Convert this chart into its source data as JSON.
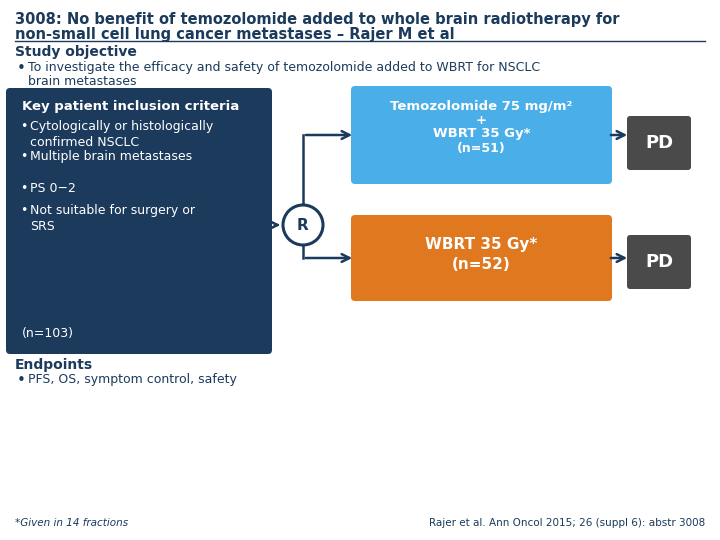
{
  "title_line1": "3008: No benefit of temozolomide added to whole brain radiotherapy for",
  "title_line2": "non-small cell lung cancer metastases – Rajer M et al",
  "study_objective_header": "Study objective",
  "study_objective_bullet1": "To investigate the efficacy and safety of temozolomide added to WBRT for NSCLC",
  "study_objective_bullet2": "brain metastases",
  "key_box_header": "Key patient inclusion criteria",
  "key_box_bullets": [
    "Cytologically or histologically\nconfirmed NSCLC",
    "Multiple brain metastases",
    "PS 0−2",
    "Not suitable for surgery or\nSRS"
  ],
  "key_box_footer": "(n=103)",
  "key_box_color": "#1b3a5c",
  "arm1_line1": "Temozolomide 75 mg/m²",
  "arm1_line2": "+",
  "arm1_line3": "WBRT 35 Gy*",
  "arm1_line4": "(n=51)",
  "arm1_color": "#4aaee8",
  "arm2_line1": "WBRT 35 Gy*",
  "arm2_line2": "(n=52)",
  "arm2_color": "#e07820",
  "pd_color": "#4a4a4a",
  "pd_text": "PD",
  "r_circle_color": "#ffffff",
  "r_circle_border": "#1b3a5c",
  "endpoints_header": "Endpoints",
  "endpoints_bullet": "PFS, OS, symptom control, safety",
  "footnote_left": "*Given in 14 fractions",
  "footnote_right": "Rajer et al. Ann Oncol 2015; 26 (suppl 6): abstr 3008",
  "background_color": "#ffffff",
  "text_color": "#1b3a5c",
  "title_fontsize": 10.5,
  "body_fontsize": 9,
  "small_fontsize": 7.5
}
